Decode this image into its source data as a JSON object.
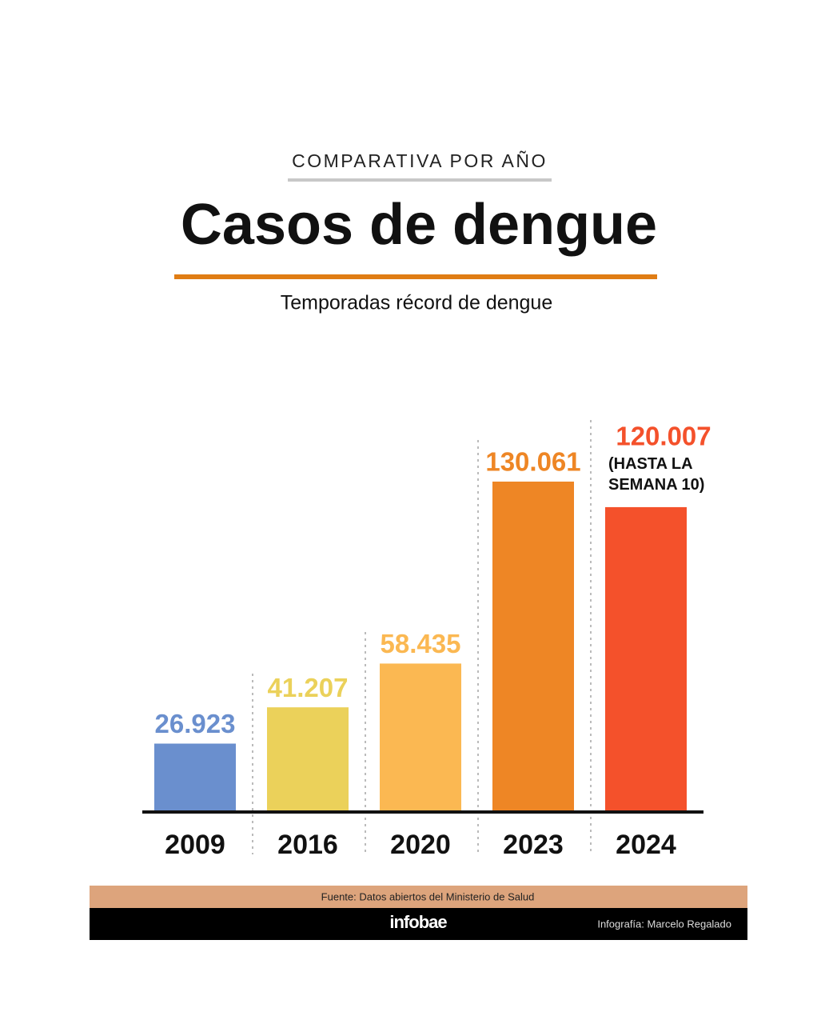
{
  "chart_data": {
    "type": "bar",
    "kicker": "COMPARATIVA POR AÑO",
    "title": "Casos de dengue",
    "subtitle": "Temporadas récord de dengue",
    "categories": [
      "2009",
      "2016",
      "2020",
      "2023",
      "2024"
    ],
    "values": [
      26923,
      41207,
      58435,
      130061,
      120007
    ],
    "value_labels": [
      "26.923",
      "41.207",
      "58.435",
      "130.061",
      "120.007"
    ],
    "colors": [
      "#6a8fce",
      "#ebd15a",
      "#fbb852",
      "#ee8625",
      "#f4512b"
    ],
    "annotation": "(HASTA LA SEMANA 10)",
    "source": "Fuente: Datos abiertos del Ministerio de Salud",
    "brand": "infobae",
    "credit": "Infografía: Marcelo Regalado"
  }
}
